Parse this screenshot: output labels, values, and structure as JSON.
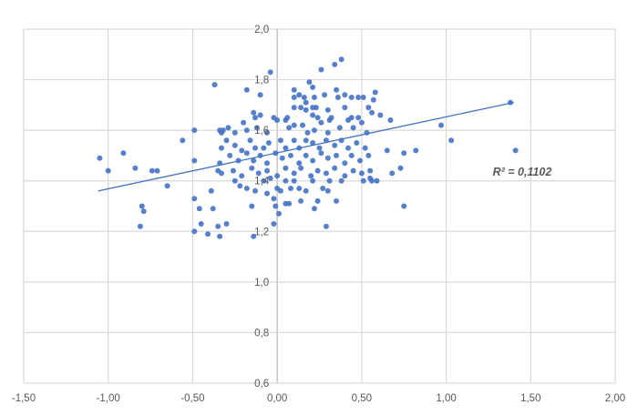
{
  "colors": {
    "background": "#ffffff",
    "gridline": "#d9d9d9",
    "axis_line": "#bfbfbf",
    "marker": "#4472c4",
    "trendline": "#4472c4",
    "tick_label": "#595959",
    "annotation": "#595959"
  },
  "chart_data": {
    "type": "scatter",
    "title": "",
    "xlabel": "",
    "ylabel": "",
    "grid": true,
    "legend": false,
    "xlim": [
      -1.5,
      2.0
    ],
    "ylim": [
      0.6,
      2.0
    ],
    "x_ticks": {
      "values": [
        -1.5,
        -1.0,
        -0.5,
        0.0,
        0.5,
        1.0,
        1.5,
        2.0
      ],
      "labels": [
        "-1,50",
        "-1,00",
        "-0,50",
        "0,00",
        "0,50",
        "1,00",
        "1,50",
        "2,00"
      ]
    },
    "y_ticks": {
      "values": [
        2.0,
        1.8,
        1.6,
        1.4,
        1.2,
        1.0,
        0.8,
        0.6
      ],
      "labels": [
        "2,0",
        "1,8",
        "1,6",
        "1,4",
        "1,2",
        "1,0",
        "0,8",
        "0,6"
      ]
    },
    "annotation": {
      "text": "R² = 0,1102",
      "x": 1.48,
      "y": 1.43
    },
    "trendline": {
      "x1": -1.06,
      "y1": 1.36,
      "x2": 1.4,
      "y2": 1.71,
      "r_squared": 0.1102
    },
    "points": [
      [
        -0.37,
        1.78
      ],
      [
        -0.04,
        1.83
      ],
      [
        0.26,
        1.84
      ],
      [
        0.34,
        1.86
      ],
      [
        0.38,
        1.88
      ],
      [
        0.19,
        1.79
      ],
      [
        -0.18,
        1.76
      ],
      [
        -0.1,
        1.74
      ],
      [
        0.1,
        1.76
      ],
      [
        0.1,
        1.73
      ],
      [
        0.13,
        1.74
      ],
      [
        0.16,
        1.73
      ],
      [
        0.17,
        1.71
      ],
      [
        0.21,
        1.77
      ],
      [
        0.22,
        1.73
      ],
      [
        0.28,
        1.74
      ],
      [
        0.35,
        1.76
      ],
      [
        0.36,
        1.73
      ],
      [
        0.4,
        1.74
      ],
      [
        0.44,
        1.73
      ],
      [
        0.48,
        1.73
      ],
      [
        0.51,
        1.73
      ],
      [
        0.58,
        1.75
      ],
      [
        0.57,
        1.72
      ],
      [
        1.38,
        1.71
      ],
      [
        -1.05,
        1.49
      ],
      [
        -1.0,
        1.44
      ],
      [
        -0.91,
        1.51
      ],
      [
        -0.84,
        1.45
      ],
      [
        -0.74,
        1.44
      ],
      [
        -0.71,
        1.44
      ],
      [
        -0.56,
        1.56
      ],
      [
        -0.49,
        1.6
      ],
      [
        -0.49,
        1.48
      ],
      [
        -0.34,
        1.6
      ],
      [
        -0.33,
        1.59
      ],
      [
        -0.33,
        1.53
      ],
      [
        -0.34,
        1.47
      ],
      [
        -0.35,
        1.44
      ],
      [
        -0.33,
        1.43
      ],
      [
        -0.13,
        1.65
      ],
      [
        -0.1,
        1.66
      ],
      [
        -0.02,
        1.65
      ],
      [
        0.06,
        1.65
      ],
      [
        0.1,
        1.69
      ],
      [
        0.14,
        1.69
      ],
      [
        0.17,
        1.68
      ],
      [
        0.21,
        1.69
      ],
      [
        0.23,
        1.69
      ],
      [
        0.21,
        1.66
      ],
      [
        0.24,
        1.65
      ],
      [
        0.3,
        1.68
      ],
      [
        0.32,
        1.65
      ],
      [
        0.4,
        1.69
      ],
      [
        0.44,
        1.65
      ],
      [
        0.48,
        1.65
      ],
      [
        0.54,
        1.69
      ],
      [
        -0.14,
        1.67
      ],
      [
        -0.32,
        1.6
      ],
      [
        -0.29,
        1.61
      ],
      [
        -0.25,
        1.59
      ],
      [
        -0.2,
        1.63
      ],
      [
        -0.18,
        1.6
      ],
      [
        -0.12,
        1.61
      ],
      [
        -0.06,
        1.59
      ],
      [
        0.0,
        1.64
      ],
      [
        0.05,
        1.64
      ],
      [
        0.07,
        1.61
      ],
      [
        0.1,
        1.62
      ],
      [
        0.15,
        1.62
      ],
      [
        0.18,
        1.59
      ],
      [
        0.22,
        1.6
      ],
      [
        0.26,
        1.63
      ],
      [
        0.31,
        1.64
      ],
      [
        0.3,
        1.59
      ],
      [
        0.37,
        1.61
      ],
      [
        0.42,
        1.64
      ],
      [
        0.45,
        1.61
      ],
      [
        0.5,
        1.63
      ],
      [
        0.53,
        1.59
      ],
      [
        -0.3,
        1.56
      ],
      [
        -0.25,
        1.54
      ],
      [
        -0.21,
        1.52
      ],
      [
        -0.16,
        1.56
      ],
      [
        -0.13,
        1.53
      ],
      [
        -0.08,
        1.53
      ],
      [
        -0.05,
        1.55
      ],
      [
        0.02,
        1.56
      ],
      [
        0.05,
        1.53
      ],
      [
        0.1,
        1.56
      ],
      [
        0.13,
        1.53
      ],
      [
        0.17,
        1.56
      ],
      [
        0.21,
        1.55
      ],
      [
        0.25,
        1.53
      ],
      [
        0.29,
        1.56
      ],
      [
        0.34,
        1.54
      ],
      [
        0.38,
        1.56
      ],
      [
        0.42,
        1.53
      ],
      [
        0.47,
        1.55
      ],
      [
        0.52,
        1.53
      ],
      [
        -0.28,
        1.5
      ],
      [
        -0.23,
        1.48
      ],
      [
        -0.18,
        1.51
      ],
      [
        -0.14,
        1.48
      ],
      [
        -0.1,
        1.5
      ],
      [
        -0.06,
        1.47
      ],
      [
        -0.01,
        1.51
      ],
      [
        0.03,
        1.49
      ],
      [
        0.08,
        1.5
      ],
      [
        0.13,
        1.47
      ],
      [
        0.17,
        1.5
      ],
      [
        0.21,
        1.48
      ],
      [
        0.26,
        1.51
      ],
      [
        0.3,
        1.49
      ],
      [
        0.35,
        1.5
      ],
      [
        0.4,
        1.47
      ],
      [
        0.44,
        1.5
      ],
      [
        0.49,
        1.48
      ],
      [
        0.54,
        1.5
      ],
      [
        -0.26,
        1.44
      ],
      [
        -0.21,
        1.42
      ],
      [
        -0.15,
        1.45
      ],
      [
        -0.11,
        1.43
      ],
      [
        -0.06,
        1.44
      ],
      [
        0.0,
        1.42
      ],
      [
        0.05,
        1.45
      ],
      [
        0.1,
        1.43
      ],
      [
        0.14,
        1.45
      ],
      [
        0.2,
        1.42
      ],
      [
        0.24,
        1.44
      ],
      [
        0.29,
        1.43
      ],
      [
        0.34,
        1.45
      ],
      [
        0.4,
        1.42
      ],
      [
        0.45,
        1.44
      ],
      [
        0.5,
        1.43
      ],
      [
        0.56,
        1.67
      ],
      [
        0.61,
        1.66
      ],
      [
        0.67,
        1.64
      ],
      [
        0.97,
        1.62
      ],
      [
        1.03,
        1.56
      ],
      [
        1.41,
        1.52
      ],
      [
        0.65,
        1.52
      ],
      [
        0.75,
        1.51
      ],
      [
        0.82,
        1.52
      ],
      [
        0.73,
        1.45
      ],
      [
        0.68,
        1.43
      ],
      [
        0.55,
        1.44
      ],
      [
        -0.65,
        1.38
      ],
      [
        -0.8,
        1.3
      ],
      [
        -0.79,
        1.28
      ],
      [
        -0.81,
        1.22
      ],
      [
        -0.49,
        1.33
      ],
      [
        -0.46,
        1.29
      ],
      [
        -0.39,
        1.36
      ],
      [
        -0.38,
        1.29
      ],
      [
        -0.35,
        1.22
      ],
      [
        -0.45,
        1.23
      ],
      [
        -0.41,
        1.19
      ],
      [
        -0.34,
        1.18
      ],
      [
        -0.49,
        1.2
      ],
      [
        -0.25,
        1.4
      ],
      [
        -0.22,
        1.38
      ],
      [
        -0.18,
        1.37
      ],
      [
        -0.13,
        1.36
      ],
      [
        -0.08,
        1.4
      ],
      [
        -0.06,
        1.35
      ],
      [
        -0.04,
        1.41
      ],
      [
        0.0,
        1.37
      ],
      [
        0.02,
        1.36
      ],
      [
        0.05,
        1.4
      ],
      [
        0.08,
        1.37
      ],
      [
        0.1,
        1.4
      ],
      [
        0.13,
        1.37
      ],
      [
        0.17,
        1.36
      ],
      [
        0.21,
        1.4
      ],
      [
        0.27,
        1.37
      ],
      [
        0.3,
        1.36
      ],
      [
        0.31,
        1.4
      ],
      [
        0.38,
        1.4
      ],
      [
        0.51,
        1.4
      ],
      [
        0.55,
        1.41
      ],
      [
        -0.15,
        1.3
      ],
      [
        -0.02,
        1.33
      ],
      [
        -0.01,
        1.3
      ],
      [
        0.05,
        1.31
      ],
      [
        0.07,
        1.31
      ],
      [
        0.14,
        1.32
      ],
      [
        0.22,
        1.29
      ],
      [
        0.24,
        1.32
      ],
      [
        0.35,
        1.32
      ],
      [
        0.01,
        1.27
      ],
      [
        -0.02,
        1.23
      ],
      [
        0.29,
        1.22
      ],
      [
        -0.3,
        1.23
      ],
      [
        -0.14,
        1.18
      ],
      [
        0.56,
        1.4
      ],
      [
        0.59,
        1.4
      ],
      [
        0.75,
        1.3
      ]
    ]
  }
}
